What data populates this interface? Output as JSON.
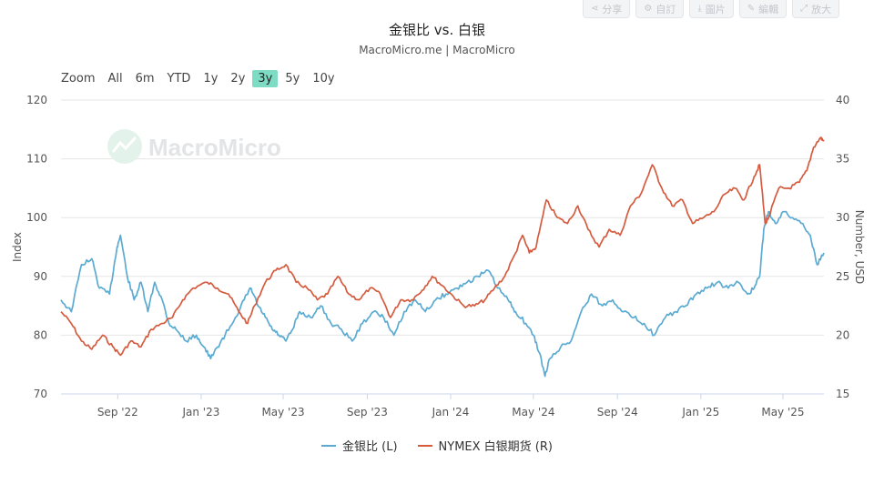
{
  "toolbar": {
    "items": [
      {
        "label": "分享",
        "icon": "share-icon",
        "glyph": "⋖"
      },
      {
        "label": "自訂",
        "icon": "gear-icon",
        "glyph": "⚙"
      },
      {
        "label": "圖片",
        "icon": "download-icon",
        "glyph": "⤓"
      },
      {
        "label": "編輯",
        "icon": "pencil-icon",
        "glyph": "✎"
      },
      {
        "label": "放大",
        "icon": "expand-icon",
        "glyph": "⤢"
      }
    ]
  },
  "header": {
    "title": "金银比 vs. 白银",
    "subtitle": "MacroMicro.me | MacroMicro"
  },
  "zoom": {
    "label": "Zoom",
    "options": [
      "All",
      "6m",
      "YTD",
      "1y",
      "2y",
      "3y",
      "5y",
      "10y"
    ],
    "selected": "3y"
  },
  "watermark": {
    "text": "MacroMicro"
  },
  "colors": {
    "series_left": "#5aaad1",
    "series_right": "#d55b3f",
    "accent": "#7fdcc4",
    "grid": "#e6e6e6"
  },
  "chart_data": {
    "type": "line",
    "x_tick_labels": [
      "Sep '22",
      "Jan '23",
      "May '23",
      "Sep '23",
      "Jan '24",
      "May '24",
      "Sep '24",
      "Jan '25",
      "May '25"
    ],
    "x_range": [
      "2022-06-10",
      "2025-06-30"
    ],
    "y_left": {
      "label": "Index",
      "ticks": [
        70,
        80,
        90,
        100,
        110,
        120
      ],
      "range": [
        70,
        120
      ]
    },
    "y_right": {
      "label": "Number, USD",
      "ticks": [
        15,
        20,
        25,
        30,
        35,
        40
      ],
      "range": [
        15,
        40
      ]
    },
    "grid": true,
    "legend_position": "bottom",
    "series": [
      {
        "name": "金银比 (L)",
        "axis": "left",
        "color": "#5aaad1",
        "points": [
          [
            "2022-06-10",
            86
          ],
          [
            "2022-06-25",
            84
          ],
          [
            "2022-07-10",
            92
          ],
          [
            "2022-07-25",
            93
          ],
          [
            "2022-08-05",
            88
          ],
          [
            "2022-08-20",
            87
          ],
          [
            "2022-08-31",
            95
          ],
          [
            "2022-09-05",
            97
          ],
          [
            "2022-09-15",
            90
          ],
          [
            "2022-09-25",
            86
          ],
          [
            "2022-10-05",
            89
          ],
          [
            "2022-10-15",
            84
          ],
          [
            "2022-10-25",
            89
          ],
          [
            "2022-11-05",
            86
          ],
          [
            "2022-11-15",
            82
          ],
          [
            "2022-11-25",
            81
          ],
          [
            "2022-12-10",
            79
          ],
          [
            "2022-12-25",
            80
          ],
          [
            "2023-01-05",
            78
          ],
          [
            "2023-01-15",
            76
          ],
          [
            "2023-01-25",
            78
          ],
          [
            "2023-02-05",
            80
          ],
          [
            "2023-02-20",
            83
          ],
          [
            "2023-03-05",
            86
          ],
          [
            "2023-03-15",
            88
          ],
          [
            "2023-03-25",
            85
          ],
          [
            "2023-04-05",
            83
          ],
          [
            "2023-04-15",
            81
          ],
          [
            "2023-04-25",
            80
          ],
          [
            "2023-05-05",
            79
          ],
          [
            "2023-05-15",
            81
          ],
          [
            "2023-05-25",
            84
          ],
          [
            "2023-06-10",
            83
          ],
          [
            "2023-06-25",
            85
          ],
          [
            "2023-07-10",
            82
          ],
          [
            "2023-07-25",
            81
          ],
          [
            "2023-08-10",
            79
          ],
          [
            "2023-08-25",
            82
          ],
          [
            "2023-09-10",
            84
          ],
          [
            "2023-09-25",
            83
          ],
          [
            "2023-10-10",
            80
          ],
          [
            "2023-10-25",
            84
          ],
          [
            "2023-11-10",
            86
          ],
          [
            "2023-11-25",
            84
          ],
          [
            "2023-12-10",
            86
          ],
          [
            "2023-12-25",
            87
          ],
          [
            "2024-01-10",
            88
          ],
          [
            "2024-01-25",
            89
          ],
          [
            "2024-02-10",
            90
          ],
          [
            "2024-02-25",
            91
          ],
          [
            "2024-03-10",
            88
          ],
          [
            "2024-03-25",
            86
          ],
          [
            "2024-04-05",
            84
          ],
          [
            "2024-04-20",
            82
          ],
          [
            "2024-05-01",
            80
          ],
          [
            "2024-05-10",
            77
          ],
          [
            "2024-05-18",
            73
          ],
          [
            "2024-05-25",
            76
          ],
          [
            "2024-06-10",
            78
          ],
          [
            "2024-06-25",
            79
          ],
          [
            "2024-07-10",
            84
          ],
          [
            "2024-07-25",
            87
          ],
          [
            "2024-08-10",
            85
          ],
          [
            "2024-08-25",
            86
          ],
          [
            "2024-09-10",
            84
          ],
          [
            "2024-09-25",
            83
          ],
          [
            "2024-10-10",
            82
          ],
          [
            "2024-10-25",
            80
          ],
          [
            "2024-11-10",
            83
          ],
          [
            "2024-11-25",
            84
          ],
          [
            "2024-12-10",
            85
          ],
          [
            "2024-12-25",
            87
          ],
          [
            "2025-01-10",
            88
          ],
          [
            "2025-01-25",
            89
          ],
          [
            "2025-02-10",
            88
          ],
          [
            "2025-02-25",
            89
          ],
          [
            "2025-03-10",
            87
          ],
          [
            "2025-03-20",
            88
          ],
          [
            "2025-03-28",
            90
          ],
          [
            "2025-04-03",
            98
          ],
          [
            "2025-04-10",
            101
          ],
          [
            "2025-04-20",
            99
          ],
          [
            "2025-05-01",
            101
          ],
          [
            "2025-05-15",
            100
          ],
          [
            "2025-05-30",
            99
          ],
          [
            "2025-06-10",
            97
          ],
          [
            "2025-06-20",
            92
          ],
          [
            "2025-06-30",
            94
          ]
        ]
      },
      {
        "name": "NYMEX 白银期货 (R)",
        "axis": "right",
        "color": "#d55b3f",
        "points": [
          [
            "2022-06-10",
            22.0
          ],
          [
            "2022-06-25",
            21.0
          ],
          [
            "2022-07-10",
            19.5
          ],
          [
            "2022-07-25",
            18.8
          ],
          [
            "2022-08-10",
            20.0
          ],
          [
            "2022-08-25",
            19.0
          ],
          [
            "2022-09-05",
            18.3
          ],
          [
            "2022-09-20",
            19.5
          ],
          [
            "2022-10-05",
            19.0
          ],
          [
            "2022-10-20",
            20.5
          ],
          [
            "2022-11-05",
            21.0
          ],
          [
            "2022-11-20",
            21.5
          ],
          [
            "2022-12-05",
            23.0
          ],
          [
            "2022-12-20",
            24.0
          ],
          [
            "2023-01-10",
            24.5
          ],
          [
            "2023-01-25",
            24.0
          ],
          [
            "2023-02-10",
            23.5
          ],
          [
            "2023-02-25",
            22.0
          ],
          [
            "2023-03-10",
            21.0
          ],
          [
            "2023-03-20",
            22.5
          ],
          [
            "2023-04-05",
            24.5
          ],
          [
            "2023-04-20",
            25.5
          ],
          [
            "2023-05-05",
            26.0
          ],
          [
            "2023-05-20",
            24.5
          ],
          [
            "2023-06-05",
            24.0
          ],
          [
            "2023-06-20",
            23.0
          ],
          [
            "2023-07-05",
            23.5
          ],
          [
            "2023-07-20",
            25.0
          ],
          [
            "2023-08-05",
            23.5
          ],
          [
            "2023-08-20",
            23.0
          ],
          [
            "2023-09-05",
            24.0
          ],
          [
            "2023-09-20",
            23.5
          ],
          [
            "2023-10-05",
            21.5
          ],
          [
            "2023-10-20",
            23.0
          ],
          [
            "2023-11-05",
            23.0
          ],
          [
            "2023-11-20",
            23.8
          ],
          [
            "2023-12-05",
            25.0
          ],
          [
            "2023-12-20",
            24.2
          ],
          [
            "2024-01-05",
            23.3
          ],
          [
            "2024-01-20",
            22.5
          ],
          [
            "2024-02-05",
            22.5
          ],
          [
            "2024-02-20",
            23.0
          ],
          [
            "2024-03-05",
            24.0
          ],
          [
            "2024-03-20",
            25.0
          ],
          [
            "2024-04-05",
            27.0
          ],
          [
            "2024-04-15",
            28.5
          ],
          [
            "2024-04-25",
            27.0
          ],
          [
            "2024-05-05",
            27.5
          ],
          [
            "2024-05-20",
            31.5
          ],
          [
            "2024-06-05",
            30.0
          ],
          [
            "2024-06-20",
            29.5
          ],
          [
            "2024-07-05",
            31.0
          ],
          [
            "2024-07-20",
            29.0
          ],
          [
            "2024-08-05",
            27.5
          ],
          [
            "2024-08-20",
            29.0
          ],
          [
            "2024-09-05",
            28.5
          ],
          [
            "2024-09-20",
            31.0
          ],
          [
            "2024-10-05",
            32.0
          ],
          [
            "2024-10-22",
            34.5
          ],
          [
            "2024-11-05",
            32.5
          ],
          [
            "2024-11-20",
            31.0
          ],
          [
            "2024-12-05",
            31.5
          ],
          [
            "2024-12-20",
            29.5
          ],
          [
            "2025-01-05",
            30.0
          ],
          [
            "2025-01-20",
            30.5
          ],
          [
            "2025-02-05",
            32.0
          ],
          [
            "2025-02-20",
            32.5
          ],
          [
            "2025-03-05",
            31.5
          ],
          [
            "2025-03-20",
            33.5
          ],
          [
            "2025-03-28",
            34.5
          ],
          [
            "2025-04-05",
            29.5
          ],
          [
            "2025-04-10",
            30.0
          ],
          [
            "2025-04-25",
            32.5
          ],
          [
            "2025-05-10",
            32.5
          ],
          [
            "2025-05-25",
            33.0
          ],
          [
            "2025-06-05",
            34.0
          ],
          [
            "2025-06-15",
            36.0
          ],
          [
            "2025-06-25",
            36.8
          ],
          [
            "2025-06-30",
            36.5
          ]
        ]
      }
    ]
  }
}
